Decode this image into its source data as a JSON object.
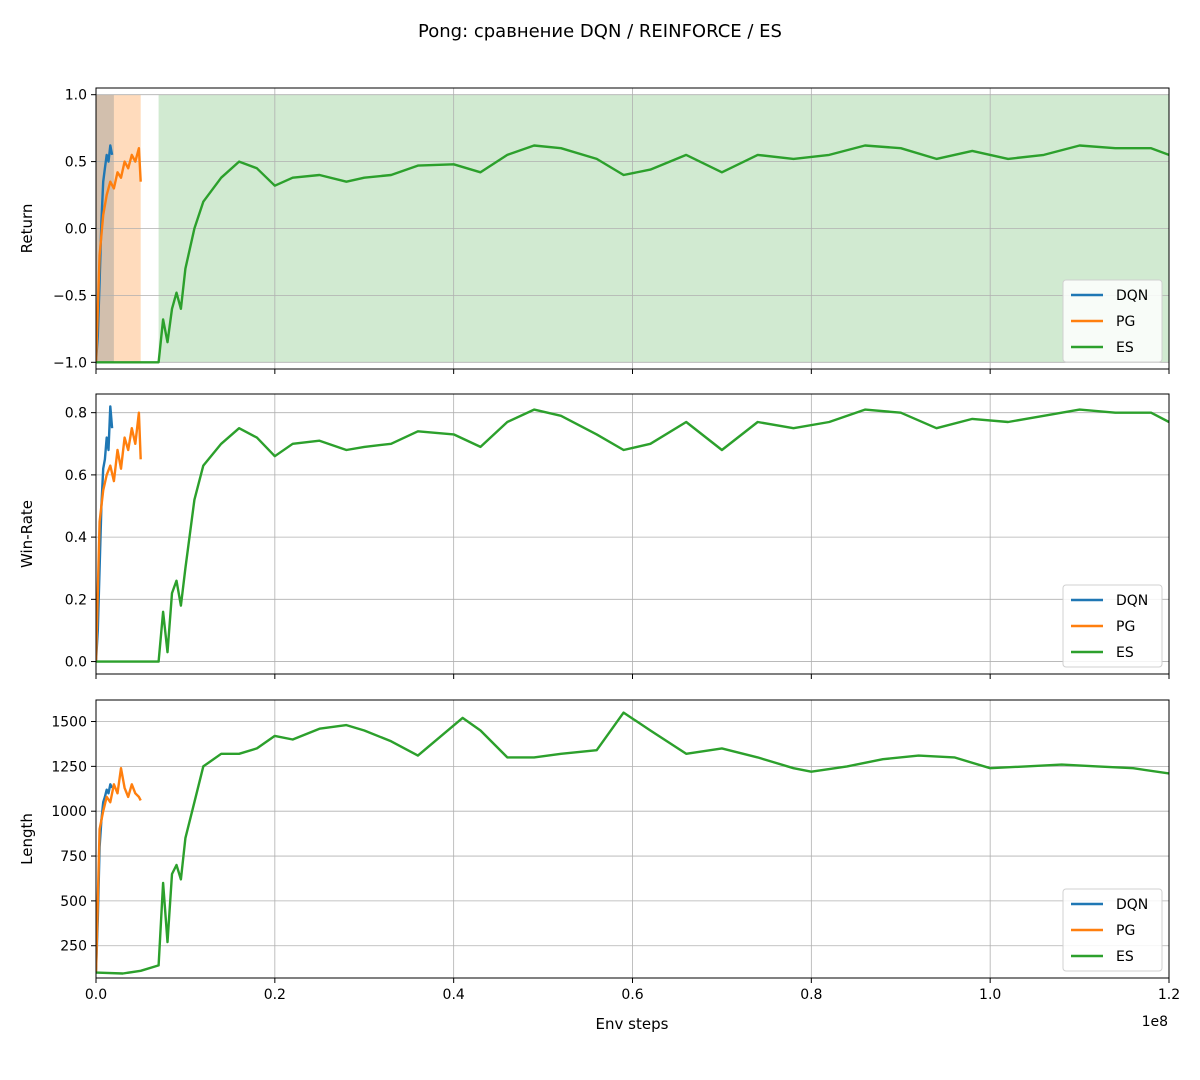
{
  "chart_data": {
    "type": "line",
    "title": "Pong: сравнение DQN / REINFORCE / ES",
    "xlabel": "Env steps",
    "x_offset_label": "1e8",
    "xlim": [
      0,
      1.2
    ],
    "xticks": [
      "0.0",
      "0.2",
      "0.4",
      "0.6",
      "0.8",
      "1.0",
      "1.2"
    ],
    "colors": {
      "DQN": "#1f77b4",
      "PG": "#ff7f0e",
      "ES": "#2ca02c"
    },
    "legend": {
      "placement": "lower-right",
      "entries": [
        "DQN",
        "PG",
        "ES"
      ]
    },
    "grid": true,
    "panels": [
      {
        "ylabel": "Return",
        "ylim": [
          -1.05,
          1.05
        ],
        "yticks": [
          -1.0,
          -0.5,
          0.0,
          0.5,
          1.0
        ],
        "ytick_labels": [
          "−1.0",
          "−0.5",
          "0.0",
          "0.5",
          "1.0"
        ],
        "raw_bands": [
          {
            "series": "DQN",
            "x": [
              0,
              0.02
            ],
            "range": [
              -1.0,
              1.0
            ]
          },
          {
            "series": "PG",
            "x": [
              0,
              0.05
            ],
            "range": [
              -1.0,
              1.0
            ]
          },
          {
            "series": "ES",
            "x": [
              0.07,
              1.2
            ],
            "range": [
              -1.0,
              1.0
            ]
          }
        ],
        "series": [
          {
            "name": "DQN",
            "x": [
              0,
              0.002,
              0.004,
              0.006,
              0.008,
              0.01,
              0.012,
              0.014,
              0.016,
              0.018
            ],
            "y": [
              -1.0,
              -0.8,
              -0.4,
              0.05,
              0.35,
              0.45,
              0.55,
              0.5,
              0.62,
              0.55
            ]
          },
          {
            "name": "PG",
            "x": [
              0,
              0.004,
              0.008,
              0.012,
              0.016,
              0.02,
              0.024,
              0.028,
              0.032,
              0.036,
              0.04,
              0.044,
              0.048,
              0.05
            ],
            "y": [
              -1.0,
              -0.2,
              0.1,
              0.25,
              0.35,
              0.3,
              0.42,
              0.38,
              0.5,
              0.45,
              0.55,
              0.5,
              0.6,
              0.35
            ]
          },
          {
            "name": "ES",
            "x": [
              0,
              0.07,
              0.075,
              0.08,
              0.085,
              0.09,
              0.095,
              0.1,
              0.11,
              0.12,
              0.14,
              0.16,
              0.18,
              0.2,
              0.22,
              0.25,
              0.28,
              0.3,
              0.33,
              0.36,
              0.4,
              0.43,
              0.46,
              0.49,
              0.52,
              0.56,
              0.59,
              0.62,
              0.66,
              0.7,
              0.74,
              0.78,
              0.82,
              0.86,
              0.9,
              0.94,
              0.98,
              1.02,
              1.06,
              1.1,
              1.14,
              1.18,
              1.2
            ],
            "y": [
              -1.0,
              -1.0,
              -0.68,
              -0.85,
              -0.6,
              -0.48,
              -0.6,
              -0.3,
              0.0,
              0.2,
              0.38,
              0.5,
              0.45,
              0.32,
              0.38,
              0.4,
              0.35,
              0.38,
              0.4,
              0.47,
              0.48,
              0.42,
              0.55,
              0.62,
              0.6,
              0.52,
              0.4,
              0.44,
              0.55,
              0.42,
              0.55,
              0.52,
              0.55,
              0.62,
              0.6,
              0.52,
              0.58,
              0.52,
              0.55,
              0.62,
              0.6,
              0.6,
              0.55
            ]
          }
        ]
      },
      {
        "ylabel": "Win-Rate",
        "ylim": [
          -0.04,
          0.86
        ],
        "yticks": [
          0.0,
          0.2,
          0.4,
          0.6,
          0.8
        ],
        "ytick_labels": [
          "0.0",
          "0.2",
          "0.4",
          "0.6",
          "0.8"
        ],
        "series": [
          {
            "name": "DQN",
            "x": [
              0,
              0.002,
              0.004,
              0.006,
              0.008,
              0.01,
              0.012,
              0.014,
              0.016,
              0.018
            ],
            "y": [
              0.0,
              0.1,
              0.3,
              0.5,
              0.62,
              0.65,
              0.72,
              0.68,
              0.82,
              0.75
            ]
          },
          {
            "name": "PG",
            "x": [
              0,
              0.004,
              0.008,
              0.012,
              0.016,
              0.02,
              0.024,
              0.028,
              0.032,
              0.036,
              0.04,
              0.044,
              0.048,
              0.05
            ],
            "y": [
              0.0,
              0.45,
              0.55,
              0.6,
              0.63,
              0.58,
              0.68,
              0.62,
              0.72,
              0.68,
              0.75,
              0.7,
              0.8,
              0.65
            ]
          },
          {
            "name": "ES",
            "x": [
              0,
              0.07,
              0.075,
              0.08,
              0.085,
              0.09,
              0.095,
              0.1,
              0.11,
              0.12,
              0.14,
              0.16,
              0.18,
              0.2,
              0.22,
              0.25,
              0.28,
              0.3,
              0.33,
              0.36,
              0.4,
              0.43,
              0.46,
              0.49,
              0.52,
              0.56,
              0.59,
              0.62,
              0.66,
              0.7,
              0.74,
              0.78,
              0.82,
              0.86,
              0.9,
              0.94,
              0.98,
              1.02,
              1.06,
              1.1,
              1.14,
              1.18,
              1.2
            ],
            "y": [
              0.0,
              0.0,
              0.16,
              0.03,
              0.22,
              0.26,
              0.18,
              0.3,
              0.52,
              0.63,
              0.7,
              0.75,
              0.72,
              0.66,
              0.7,
              0.71,
              0.68,
              0.69,
              0.7,
              0.74,
              0.73,
              0.69,
              0.77,
              0.81,
              0.79,
              0.73,
              0.68,
              0.7,
              0.77,
              0.68,
              0.77,
              0.75,
              0.77,
              0.81,
              0.8,
              0.75,
              0.78,
              0.77,
              0.79,
              0.81,
              0.8,
              0.8,
              0.77
            ]
          }
        ]
      },
      {
        "ylabel": "Length",
        "ylim": [
          70,
          1620
        ],
        "yticks": [
          250,
          500,
          750,
          1000,
          1250,
          1500
        ],
        "ytick_labels": [
          "250",
          "500",
          "750",
          "1000",
          "1250",
          "1500"
        ],
        "series": [
          {
            "name": "DQN",
            "x": [
              0,
              0.002,
              0.004,
              0.006,
              0.008,
              0.01,
              0.012,
              0.014,
              0.016,
              0.018
            ],
            "y": [
              100,
              400,
              800,
              950,
              1050,
              1080,
              1120,
              1100,
              1150,
              1130
            ]
          },
          {
            "name": "PG",
            "x": [
              0,
              0.004,
              0.008,
              0.012,
              0.016,
              0.02,
              0.024,
              0.028,
              0.032,
              0.036,
              0.04,
              0.044,
              0.048,
              0.05
            ],
            "y": [
              100,
              900,
              1000,
              1080,
              1050,
              1150,
              1100,
              1240,
              1130,
              1080,
              1150,
              1100,
              1080,
              1060
            ]
          },
          {
            "name": "ES",
            "x": [
              0,
              0.03,
              0.05,
              0.07,
              0.075,
              0.08,
              0.085,
              0.09,
              0.095,
              0.1,
              0.11,
              0.12,
              0.14,
              0.16,
              0.18,
              0.2,
              0.22,
              0.25,
              0.28,
              0.3,
              0.33,
              0.36,
              0.41,
              0.43,
              0.46,
              0.49,
              0.52,
              0.56,
              0.59,
              0.62,
              0.66,
              0.7,
              0.74,
              0.78,
              0.8,
              0.84,
              0.88,
              0.92,
              0.96,
              1.0,
              1.04,
              1.08,
              1.12,
              1.16,
              1.2
            ],
            "y": [
              100,
              95,
              110,
              140,
              600,
              270,
              650,
              700,
              620,
              850,
              1050,
              1250,
              1320,
              1320,
              1350,
              1420,
              1400,
              1460,
              1480,
              1450,
              1390,
              1310,
              1520,
              1450,
              1300,
              1300,
              1320,
              1340,
              1550,
              1450,
              1320,
              1350,
              1300,
              1240,
              1220,
              1250,
              1290,
              1310,
              1300,
              1240,
              1250,
              1260,
              1250,
              1240,
              1210
            ]
          }
        ]
      }
    ]
  }
}
